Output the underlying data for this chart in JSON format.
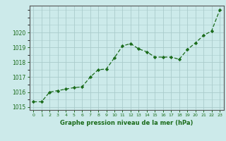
{
  "x": [
    0,
    1,
    2,
    3,
    4,
    5,
    6,
    7,
    8,
    9,
    10,
    11,
    12,
    13,
    14,
    15,
    16,
    17,
    18,
    19,
    20,
    21,
    22,
    23
  ],
  "y": [
    1015.35,
    1015.35,
    1016.0,
    1016.1,
    1016.2,
    1016.3,
    1016.35,
    1017.0,
    1017.5,
    1017.55,
    1018.3,
    1019.1,
    1019.25,
    1018.9,
    1018.7,
    1018.35,
    1018.35,
    1018.35,
    1018.2,
    1018.85,
    1019.3,
    1019.8,
    1020.1,
    1021.5
  ],
  "line_color": "#1a6b1a",
  "marker": "D",
  "marker_size": 2.2,
  "bg_color": "#cceaea",
  "grid_color": "#aacccc",
  "xlabel": "Graphe pression niveau de la mer (hPa)",
  "xlabel_color": "#1a6b1a",
  "tick_color": "#1a6b1a",
  "spine_color": "#555555",
  "ylim": [
    1014.8,
    1021.8
  ],
  "xlim": [
    -0.5,
    23.5
  ],
  "yticks": [
    1015,
    1016,
    1017,
    1018,
    1019,
    1020
  ],
  "xtick_labels": [
    "0",
    "1",
    "2",
    "3",
    "4",
    "5",
    "6",
    "7",
    "8",
    "9",
    "10",
    "11",
    "12",
    "13",
    "14",
    "15",
    "16",
    "17",
    "18",
    "19",
    "20",
    "21",
    "22",
    "23"
  ]
}
